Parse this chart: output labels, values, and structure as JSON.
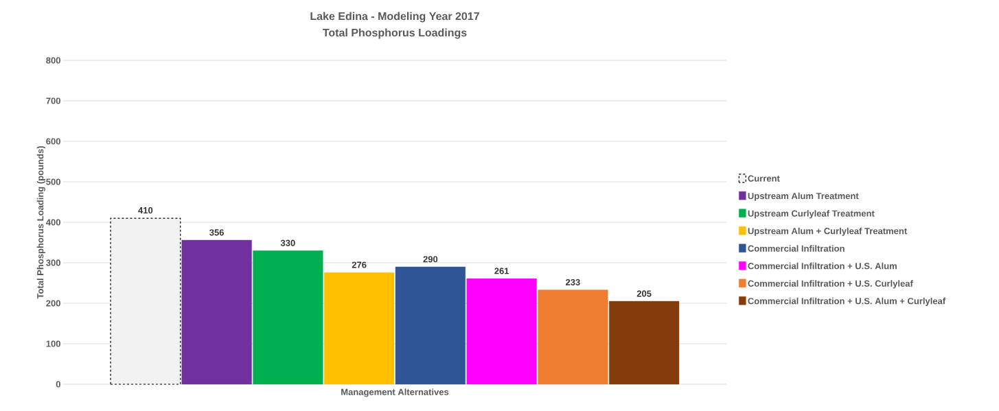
{
  "chart_data": {
    "type": "bar",
    "title": "Lake Edina - Modeling Year 2017",
    "subtitle": "Total Phosphorus Loadings",
    "xlabel": "Management Alternatives",
    "ylabel": "Total Phosphorus Loading (pounds)",
    "categories": [
      null
    ],
    "series": [
      {
        "name": "Current",
        "color": "#f2f2f2",
        "line_style": "dashed",
        "values": [
          410
        ]
      },
      {
        "name": "Upstream Alum Treatment",
        "color": "#7030a0",
        "values": [
          356
        ]
      },
      {
        "name": "Upstream Curlyleaf Treatment",
        "color": "#00b050",
        "values": [
          330
        ]
      },
      {
        "name": "Upstream Alum + Curlyleaf Treatment",
        "color": "#ffc000",
        "values": [
          276
        ]
      },
      {
        "name": "Commercial Infiltration",
        "color": "#2f5597",
        "values": [
          290
        ]
      },
      {
        "name": "Commercial Infiltration + U.S. Alum",
        "color": "#ff00ff",
        "values": [
          261
        ]
      },
      {
        "name": "Commercial Infiltration + U.S. Curlyleaf",
        "color": "#ed7d31",
        "values": [
          233
        ]
      },
      {
        "name": "Commercial Infiltration + U.S. Alum + Curlyleaf",
        "color": "#843c0c",
        "values": [
          205
        ]
      }
    ],
    "ylim": [
      0,
      800
    ],
    "yticks": [
      0,
      100,
      200,
      300,
      400,
      500,
      600,
      700,
      800
    ],
    "grid": "y",
    "legend": "right",
    "data_labels": true
  }
}
